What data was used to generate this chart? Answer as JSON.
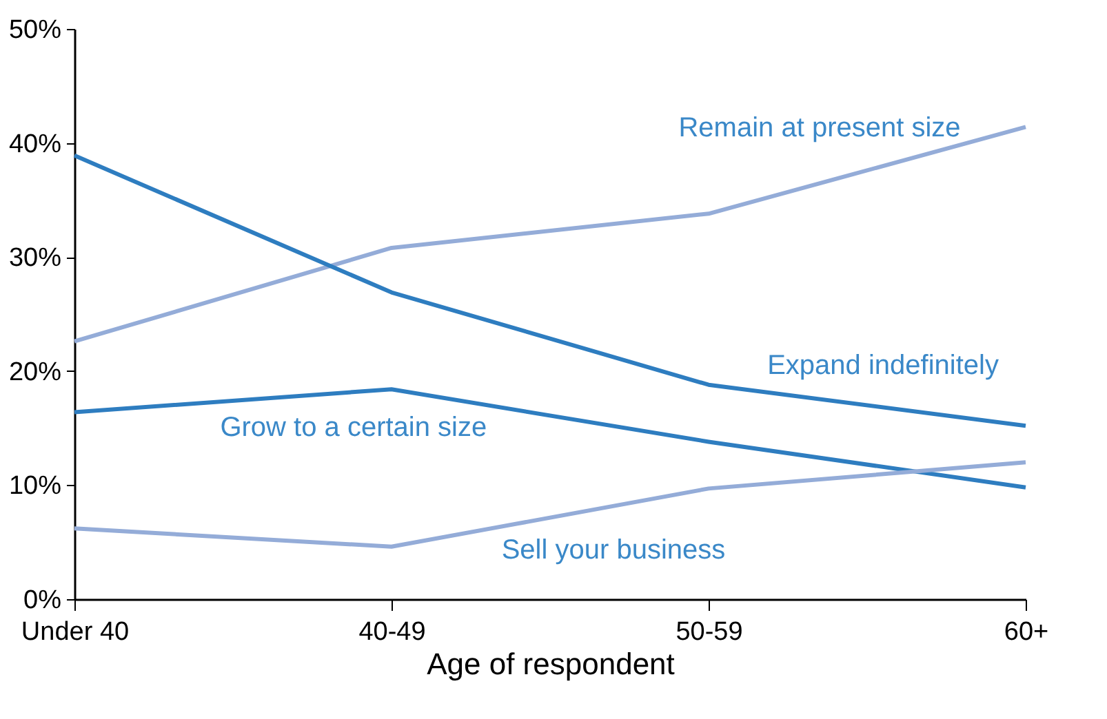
{
  "chart_data": {
    "type": "line",
    "xlabel": "Age of respondent",
    "categories": [
      "Under 40",
      "40-49",
      "50-59",
      "60+"
    ],
    "ylim": [
      0,
      50
    ],
    "yticks": [
      {
        "value": 0,
        "label": "0%"
      },
      {
        "value": 10,
        "label": "10%"
      },
      {
        "value": 20,
        "label": "20%"
      },
      {
        "value": 30,
        "label": "30%"
      },
      {
        "value": 40,
        "label": "40%"
      },
      {
        "value": 50,
        "label": "50%"
      }
    ],
    "grid": false,
    "legend": false,
    "marker": "none",
    "line_style": "solid",
    "series": [
      {
        "name": "Remain at present size",
        "color": "#94acd8",
        "values": [
          22.6,
          30.8,
          33.8,
          41.4
        ]
      },
      {
        "name": "Expand indefinitely",
        "color": "#2e7dc0",
        "values": [
          38.9,
          26.9,
          18.8,
          15.2
        ]
      },
      {
        "name": "Grow to a certain size",
        "color": "#2e7dc0",
        "values": [
          16.4,
          18.4,
          13.8,
          9.8
        ]
      },
      {
        "name": "Sell your business",
        "color": "#94acd8",
        "values": [
          6.2,
          4.6,
          9.7,
          12.0
        ]
      }
    ]
  }
}
